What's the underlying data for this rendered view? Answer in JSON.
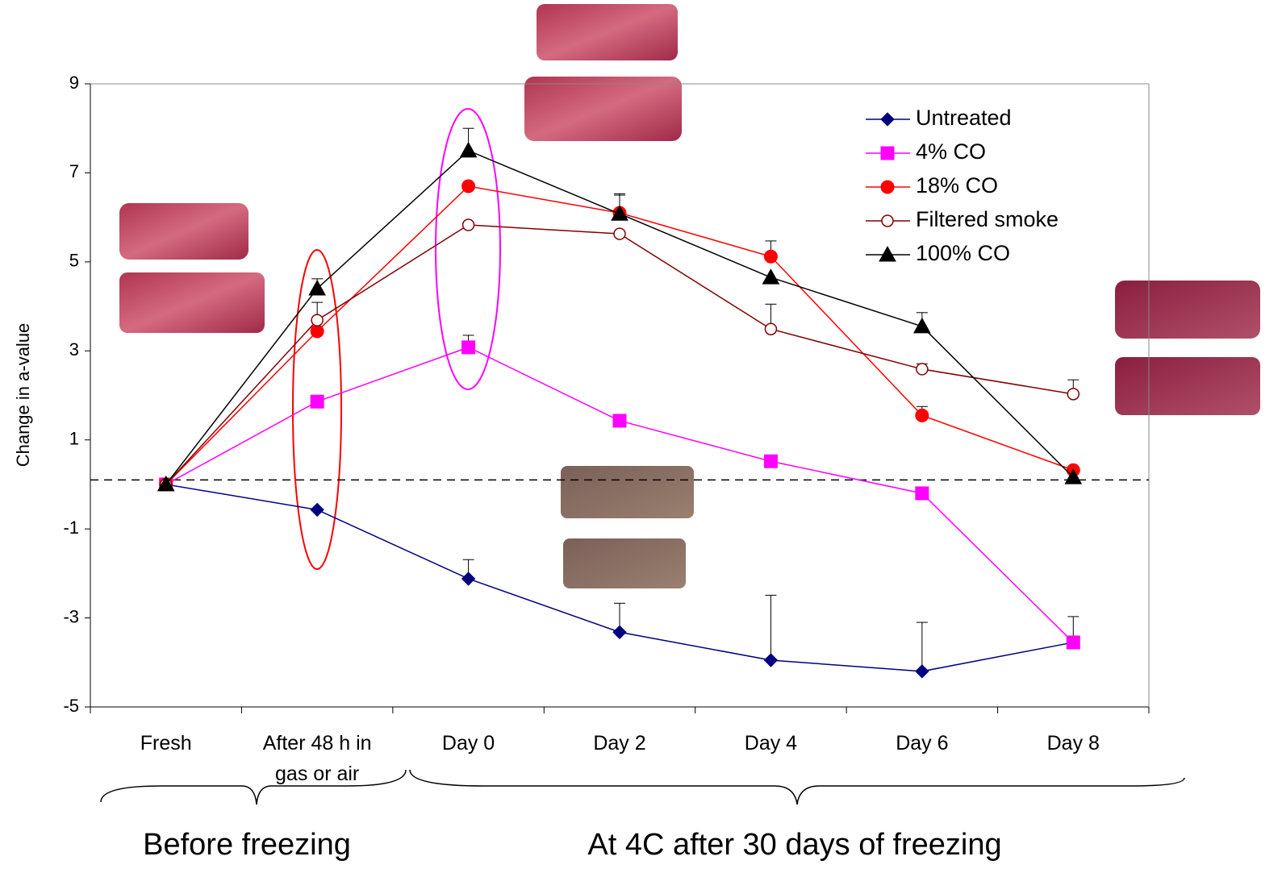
{
  "chart_data": {
    "type": "line",
    "y_label": "Change in a-value",
    "categories": [
      "Fresh",
      "After 48 h in gas or air",
      "Day 0",
      "Day 2",
      "Day 4",
      "Day 6",
      "Day 8"
    ],
    "ylim": [
      -5,
      9
    ],
    "yticks": [
      -5,
      -3,
      -1,
      1,
      3,
      5,
      7,
      9
    ],
    "reference_line": 0.1,
    "series": [
      {
        "name": "Untreated",
        "color": "#000080",
        "marker": "diamond",
        "values": [
          0,
          -0.57,
          -2.12,
          -3.32,
          -3.95,
          -4.2,
          -3.55
        ],
        "errors": [
          null,
          null,
          0.43,
          0.65,
          1.46,
          1.1,
          0.58
        ]
      },
      {
        "name": "4% CO",
        "color": "#ff00ff",
        "marker": "square",
        "values": [
          0,
          1.86,
          3.08,
          1.43,
          0.52,
          -0.2,
          -3.55
        ],
        "errors": [
          null,
          null,
          0.27,
          null,
          null,
          null,
          null
        ]
      },
      {
        "name": "18% CO",
        "color": "#ff0000",
        "marker": "circle",
        "values": [
          0,
          3.44,
          6.7,
          6.1,
          5.12,
          1.55,
          0.32
        ],
        "errors": [
          null,
          null,
          null,
          0.4,
          0.35,
          0.2,
          null
        ]
      },
      {
        "name": "Filtered smoke",
        "color": "#800000",
        "marker": "open-circle",
        "values": [
          0,
          3.69,
          5.83,
          5.63,
          3.49,
          2.59,
          2.03
        ],
        "errors": [
          null,
          0.4,
          null,
          null,
          0.56,
          0.12,
          0.32
        ]
      },
      {
        "name": "100% CO",
        "color": "#000000",
        "marker": "triangle",
        "values": [
          0,
          4.4,
          7.5,
          6.08,
          4.65,
          3.55,
          0.16
        ],
        "errors": [
          null,
          0.22,
          0.5,
          0.45,
          null,
          0.31,
          null
        ]
      }
    ],
    "groups": [
      "Before freezing",
      "At 4C after 30 days of freezing"
    ]
  }
}
